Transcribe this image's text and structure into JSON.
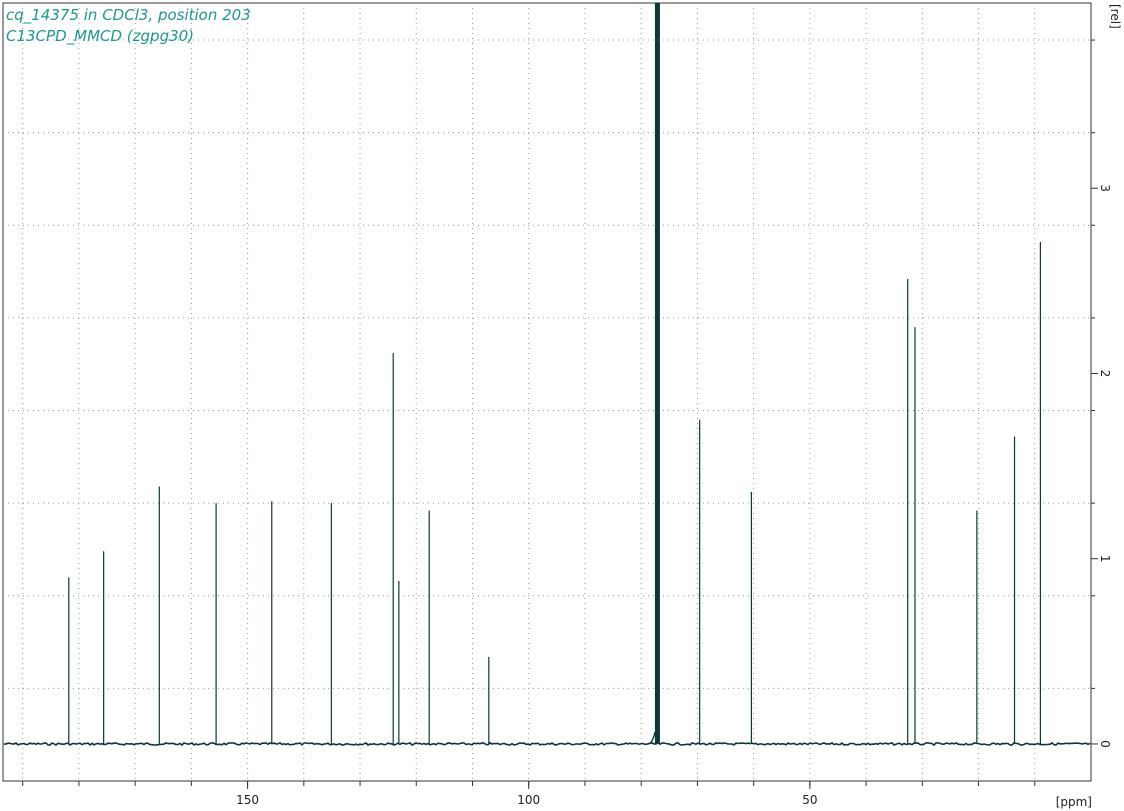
{
  "header": {
    "line1": "cq_14375 in CDCl3, position 203",
    "line2": "C13CPD_MMCD (zgpg30)"
  },
  "chart_data": {
    "type": "line",
    "title": "",
    "xlabel": "[ppm]",
    "ylabel": "[rel]",
    "x_reversed": true,
    "xlim": [
      193.5,
      0
    ],
    "ylim": [
      -0.2,
      4.0
    ],
    "x_ticks": [
      150,
      100,
      50
    ],
    "x_minor_ticks": [
      190,
      180,
      170,
      160,
      150,
      140,
      130,
      120,
      110,
      100,
      90,
      80,
      70,
      60,
      50,
      40,
      30,
      20,
      10
    ],
    "y_ticks": [
      0,
      1,
      2,
      3
    ],
    "grid": true,
    "line_color": "#0b3a36",
    "solvent_peak": {
      "ppm": 77.2,
      "label": "CDCl3",
      "height": 4.0
    },
    "peaks": [
      {
        "ppm": 181.8,
        "height": 0.9
      },
      {
        "ppm": 175.6,
        "height": 1.04
      },
      {
        "ppm": 165.7,
        "height": 1.39
      },
      {
        "ppm": 155.6,
        "height": 1.3
      },
      {
        "ppm": 145.7,
        "height": 1.31
      },
      {
        "ppm": 135.1,
        "height": 1.3
      },
      {
        "ppm": 124.1,
        "height": 2.11
      },
      {
        "ppm": 123.1,
        "height": 0.88
      },
      {
        "ppm": 117.7,
        "height": 1.26
      },
      {
        "ppm": 107.1,
        "height": 0.47
      },
      {
        "ppm": 69.6,
        "height": 1.75
      },
      {
        "ppm": 60.4,
        "height": 1.36
      },
      {
        "ppm": 32.6,
        "height": 2.51
      },
      {
        "ppm": 31.3,
        "height": 2.25
      },
      {
        "ppm": 20.3,
        "height": 1.26
      },
      {
        "ppm": 13.6,
        "height": 1.66
      },
      {
        "ppm": 9.0,
        "height": 2.71
      }
    ]
  }
}
